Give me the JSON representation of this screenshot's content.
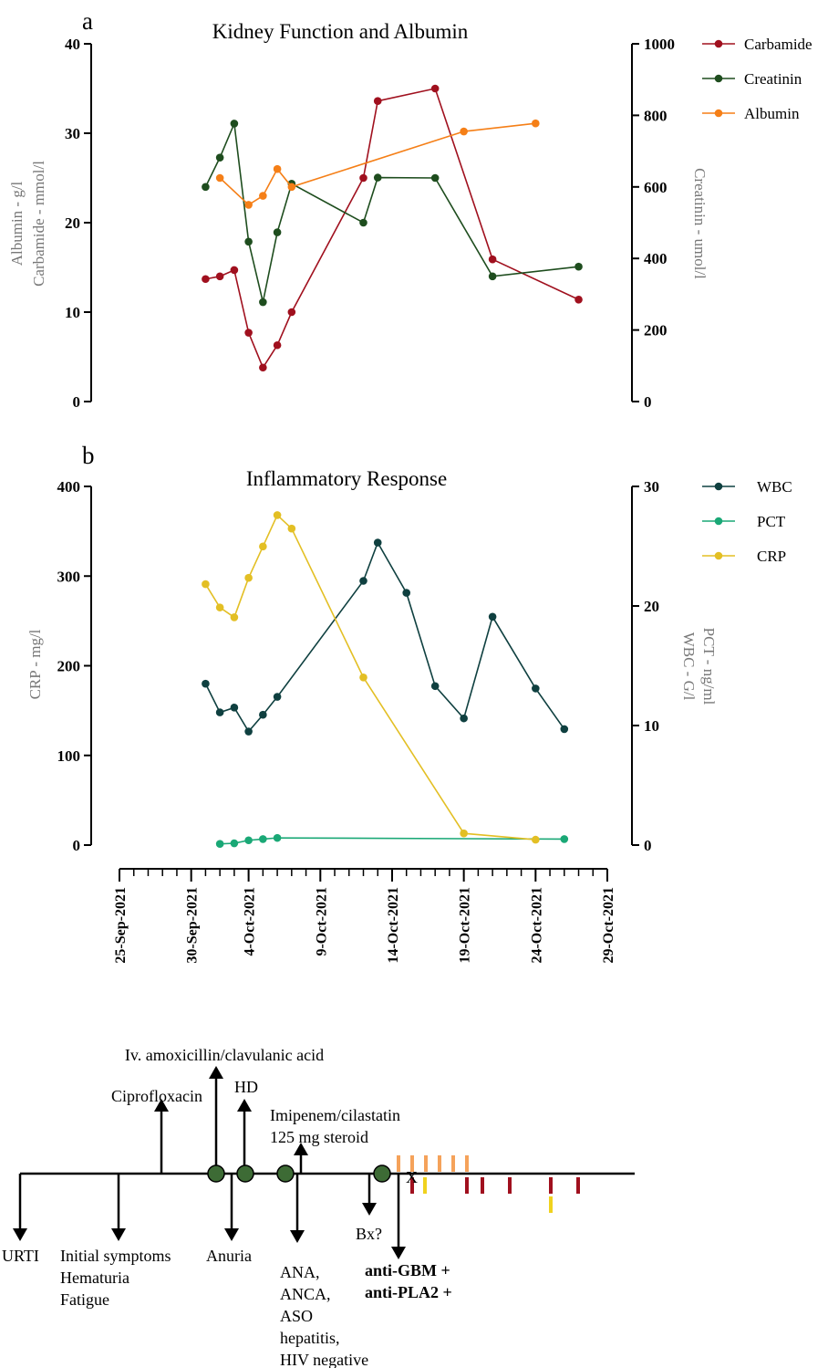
{
  "chart_data": [
    {
      "type": "line",
      "panel_label": "a",
      "title": "Kidney Function and Albumin",
      "ylabel_left": [
        "Albumin - g/l",
        "Carbamide - mmol/l"
      ],
      "ylabel_right": "Creatinin - umol/l",
      "ylim_left": [
        0,
        40
      ],
      "yticks_left": [
        "0",
        "10",
        "20",
        "30",
        "40"
      ],
      "ylim_right": [
        0,
        1000
      ],
      "yticks_right": [
        "0",
        "200",
        "400",
        "600",
        "800",
        "1000"
      ],
      "legend_position": "top-right",
      "series": [
        {
          "name": "Carbamide",
          "axis": "left",
          "color": "#a0101e",
          "x": [
            "2021-10-01",
            "2021-10-02",
            "2021-10-03",
            "2021-10-04",
            "2021-10-05",
            "2021-10-06",
            "2021-10-07",
            "2021-10-12",
            "2021-10-13",
            "2021-10-17",
            "2021-10-21",
            "2021-10-27"
          ],
          "values": [
            13.7,
            14.0,
            14.7,
            7.7,
            3.8,
            6.3,
            10.0,
            25.0,
            33.6,
            35.0,
            15.9,
            11.4
          ]
        },
        {
          "name": "Creatinin",
          "axis": "right",
          "color": "#1e4d1e",
          "x": [
            "2021-10-01",
            "2021-10-02",
            "2021-10-03",
            "2021-10-04",
            "2021-10-05",
            "2021-10-06",
            "2021-10-07",
            "2021-10-12",
            "2021-10-13",
            "2021-10-17",
            "2021-10-21",
            "2021-10-27"
          ],
          "values": [
            600,
            682,
            777,
            447,
            278,
            473,
            609,
            500,
            626,
            625,
            350,
            377
          ]
        },
        {
          "name": "Albumin",
          "axis": "left",
          "color": "#f57f17",
          "x": [
            "2021-10-02",
            "2021-10-04",
            "2021-10-05",
            "2021-10-06",
            "2021-10-07",
            "2021-10-19",
            "2021-10-24"
          ],
          "values": [
            25.0,
            22.0,
            23.0,
            26.0,
            24.0,
            30.2,
            31.1
          ]
        }
      ]
    },
    {
      "type": "line",
      "panel_label": "b",
      "title": "Inflammatory Response",
      "ylabel_left": "CRP - mg/l",
      "ylabel_right": [
        "WBC - G/l",
        "PCT - ng/ml"
      ],
      "ylim_left": [
        0,
        400
      ],
      "yticks_left": [
        "0",
        "100",
        "200",
        "300",
        "400"
      ],
      "ylim_right": [
        0,
        30
      ],
      "yticks_right": [
        "0",
        "10",
        "20",
        "30"
      ],
      "legend_position": "top-right",
      "xlim": [
        "2021-09-25",
        "2021-10-29"
      ],
      "xticks": [
        "25-Sep-2021",
        "30-Sep-2021",
        "4-Oct-2021",
        "9-Oct-2021",
        "14-Oct-2021",
        "19-Oct-2021",
        "24-Oct-2021",
        "29-Oct-2021"
      ],
      "series": [
        {
          "name": "WBC",
          "axis": "right",
          "color": "#0f4040",
          "x": [
            "2021-10-01",
            "2021-10-02",
            "2021-10-03",
            "2021-10-04",
            "2021-10-05",
            "2021-10-06",
            "2021-10-12",
            "2021-10-13",
            "2021-10-15",
            "2021-10-17",
            "2021-10-19",
            "2021-10-21",
            "2021-10-24",
            "2021-10-26"
          ],
          "values": [
            13.5,
            11.1,
            11.5,
            9.5,
            10.9,
            12.4,
            22.1,
            25.3,
            21.1,
            13.3,
            10.6,
            19.1,
            13.1,
            9.7
          ]
        },
        {
          "name": "PCT",
          "axis": "right",
          "color": "#1aa876",
          "x": [
            "2021-10-02",
            "2021-10-03",
            "2021-10-04",
            "2021-10-05",
            "2021-10-06",
            "2021-10-26"
          ],
          "values": [
            0.1,
            0.15,
            0.4,
            0.5,
            0.6,
            0.5
          ]
        },
        {
          "name": "CRP",
          "axis": "left",
          "color": "#e3bf24",
          "x": [
            "2021-10-01",
            "2021-10-02",
            "2021-10-03",
            "2021-10-04",
            "2021-10-05",
            "2021-10-06",
            "2021-10-07",
            "2021-10-12",
            "2021-10-19",
            "2021-10-24"
          ],
          "values": [
            291,
            265,
            254,
            298,
            333,
            368,
            353,
            187,
            13,
            6
          ]
        }
      ]
    }
  ],
  "timeline": {
    "labels_above": {
      "amoxicillin": "Iv. amoxicillin/clavulanic acid",
      "hd": "HD",
      "ciprofloxacin": "Ciprofloxacin",
      "imipenem": "Imipenem/cilastatin",
      "steroid": "125 mg steroid"
    },
    "labels_below": {
      "urti": "URTI",
      "initial_1": "Initial symptoms",
      "initial_2": "Hematuria",
      "initial_3": "Fatigue",
      "anuria": "Anuria",
      "neg_1": "ANA,",
      "neg_2": "ANCA,",
      "neg_3": "ASO",
      "neg_4": "hepatitis,",
      "neg_5": "HIV negative",
      "bx": "Bx?",
      "gbm": "anti-GBM +",
      "pla2": "anti-PLA2 +",
      "x_mark": "X"
    },
    "colors": {
      "node": "#3d6b35",
      "orange_mark": "#f5a25a",
      "red_mark": "#a0101e",
      "yellow_mark": "#f0d21e"
    }
  }
}
